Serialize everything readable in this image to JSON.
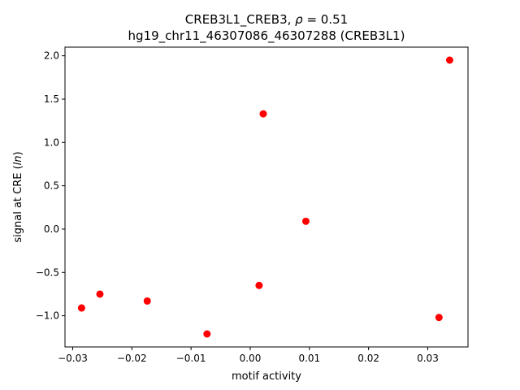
{
  "chart_data": {
    "type": "scatter",
    "title_line1_prefix": "CREB3L1_CREB3, ",
    "title_line1_rho": "ρ",
    "title_line1_suffix": " = 0.51",
    "title_line2": "hg19_chr11_46307086_46307288 (CREB3L1)",
    "xlabel": "motif activity",
    "ylabel_prefix": "signal at CRE (",
    "ylabel_italic": "ln",
    "ylabel_suffix": ")",
    "xlim": [
      -0.0313,
      0.0368
    ],
    "ylim": [
      -1.36,
      2.1
    ],
    "xticks": [
      -0.03,
      -0.02,
      -0.01,
      0.0,
      0.01,
      0.02,
      0.03
    ],
    "xtick_labels": [
      "−0.03",
      "−0.02",
      "−0.01",
      "0.00",
      "0.01",
      "0.02",
      "0.03"
    ],
    "yticks": [
      -1.0,
      -0.5,
      0.0,
      0.5,
      1.0,
      1.5,
      2.0
    ],
    "ytick_labels": [
      "−1.0",
      "−0.5",
      "0.0",
      "0.5",
      "1.0",
      "1.5",
      "2.0"
    ],
    "point_color": "#ff0000",
    "grid": false,
    "points": [
      {
        "x": -0.0285,
        "y": -0.91
      },
      {
        "x": -0.0254,
        "y": -0.75
      },
      {
        "x": -0.0174,
        "y": -0.83
      },
      {
        "x": -0.0073,
        "y": -1.21
      },
      {
        "x": 0.0015,
        "y": -0.65
      },
      {
        "x": 0.0022,
        "y": 1.33
      },
      {
        "x": 0.0094,
        "y": 0.09
      },
      {
        "x": 0.0319,
        "y": -1.02
      },
      {
        "x": 0.0337,
        "y": 1.95
      }
    ]
  }
}
